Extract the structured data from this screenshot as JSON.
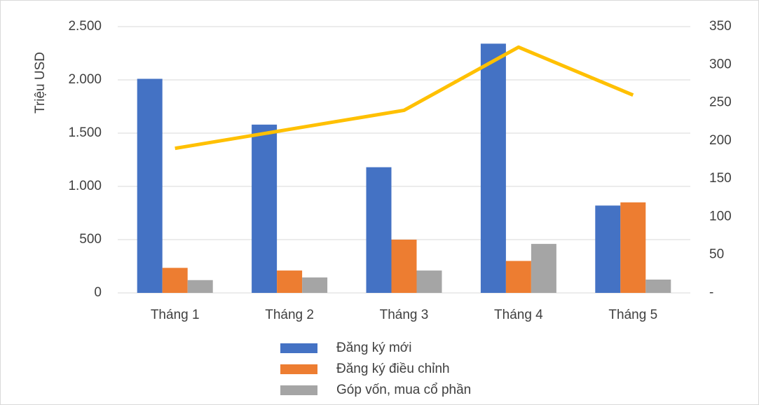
{
  "chart_data": {
    "type": "bar",
    "y_label": "Triệu USD",
    "categories": [
      "Tháng 1",
      "Tháng 2",
      "Tháng 3",
      "Tháng 4",
      "Tháng 5"
    ],
    "series": [
      {
        "name": "Đăng ký mới",
        "color": "#4472c4",
        "values": [
          2010,
          1580,
          1180,
          2340,
          820
        ]
      },
      {
        "name": "Đăng ký điều chỉnh",
        "color": "#ed7d31",
        "values": [
          235,
          210,
          500,
          300,
          850
        ]
      },
      {
        "name": "Góp vốn, mua cổ phần",
        "color": "#a5a5a5",
        "values": [
          120,
          145,
          210,
          460,
          125
        ]
      },
      {
        "type": "line",
        "axis": "y2",
        "color": "#ffc000",
        "values": [
          190,
          215,
          240,
          323,
          260
        ]
      }
    ],
    "ylim": [
      0,
      2500
    ],
    "yticks": [
      0,
      500,
      {
        "value": 1000,
        "label": "1.000"
      },
      {
        "value": 1500,
        "label": "1.500"
      },
      {
        "value": 2000,
        "label": "2.000"
      },
      {
        "value": 2500,
        "label": "2.500"
      }
    ],
    "y2lim": [
      0,
      350
    ],
    "y2ticks": [
      {
        "value": 0,
        "label": "-"
      },
      50,
      100,
      150,
      200,
      250,
      300,
      350
    ],
    "grid": true,
    "legend": "bottom"
  }
}
